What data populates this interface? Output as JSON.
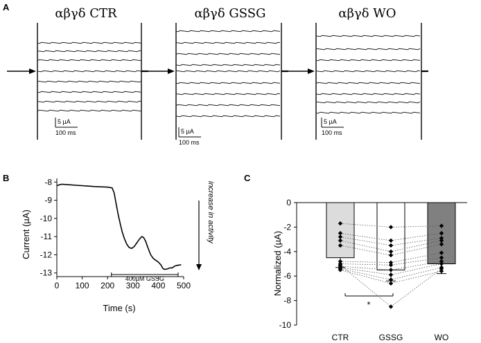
{
  "panel_a": {
    "label": "A",
    "panels": [
      {
        "title": "αβγδ CTR",
        "scale_current": "5 µA",
        "scale_time": "100 ms"
      },
      {
        "title": "αβγδ GSSG",
        "scale_current": "5 µA",
        "scale_time": "100 ms"
      },
      {
        "title": "αβγδ WO",
        "scale_current": "5 µA",
        "scale_time": "100 ms"
      }
    ]
  },
  "chart_data": [
    {
      "panel": "B",
      "type": "line",
      "xlabel": "Time (s)",
      "ylabel": "Current (µA)",
      "xlim": [
        0,
        500
      ],
      "ylim": [
        -13.2,
        -7.8
      ],
      "xticks": [
        0,
        100,
        200,
        300,
        400,
        500
      ],
      "yticks": [
        -8,
        -9,
        -10,
        -11,
        -12,
        -13
      ],
      "grid": false,
      "series": [
        {
          "x": [
            0,
            10,
            20,
            50,
            100,
            150,
            200,
            218,
            226,
            234,
            242,
            250,
            258,
            266,
            275,
            285,
            295,
            305,
            315,
            325,
            335,
            342,
            350,
            360,
            370,
            380,
            390,
            400,
            410,
            418,
            425,
            435,
            445,
            455,
            465,
            475,
            485,
            490
          ],
          "y": [
            -8.2,
            -8.15,
            -8.12,
            -8.15,
            -8.2,
            -8.25,
            -8.28,
            -8.32,
            -8.6,
            -9.2,
            -9.8,
            -10.3,
            -10.75,
            -11.1,
            -11.4,
            -11.6,
            -11.65,
            -11.55,
            -11.35,
            -11.15,
            -11.0,
            -11.05,
            -11.25,
            -11.65,
            -12.0,
            -12.2,
            -12.3,
            -12.4,
            -12.55,
            -12.75,
            -12.8,
            -12.78,
            -12.72,
            -12.72,
            -12.62,
            -12.58,
            -12.56,
            -12.55
          ]
        }
      ],
      "annotations": {
        "treatment_label": "400µM GSSG",
        "treatment_range": [
          215,
          478
        ],
        "arrow_label": "increase in activity"
      }
    },
    {
      "panel": "C",
      "type": "bar",
      "categories": [
        "CTR",
        "GSSG",
        "WO"
      ],
      "values": [
        -4.5,
        -5.5,
        -5.0
      ],
      "errors": [
        0.8,
        0.9,
        0.8
      ],
      "bar_colors": [
        "#dcdcdc",
        "#ffffff",
        "#808080"
      ],
      "ylabel": "Normalized (µA)",
      "ylim": [
        -10,
        0
      ],
      "yticks": [
        0,
        -2,
        -4,
        -6,
        -8,
        -10
      ],
      "grid": false,
      "paired_points": [
        [
          -1.7,
          -2.0,
          -1.9
        ],
        [
          -2.5,
          -3.1,
          -2.5
        ],
        [
          -2.8,
          -3.5,
          -2.9
        ],
        [
          -3.1,
          -4.0,
          -3.1
        ],
        [
          -3.5,
          -4.3,
          -3.4
        ],
        [
          -4.8,
          -4.9,
          -4.1
        ],
        [
          -5.0,
          -5.1,
          -4.5
        ],
        [
          -5.2,
          -5.5,
          -4.8
        ],
        [
          -5.3,
          -5.9,
          -5.0
        ],
        [
          -5.4,
          -6.3,
          -5.3
        ],
        [
          -5.5,
          -6.6,
          -5.6
        ],
        [
          -5.1,
          -8.5,
          -5.4
        ]
      ],
      "significance": {
        "label": "*",
        "between": [
          "CTR",
          "GSSG"
        ]
      }
    }
  ]
}
